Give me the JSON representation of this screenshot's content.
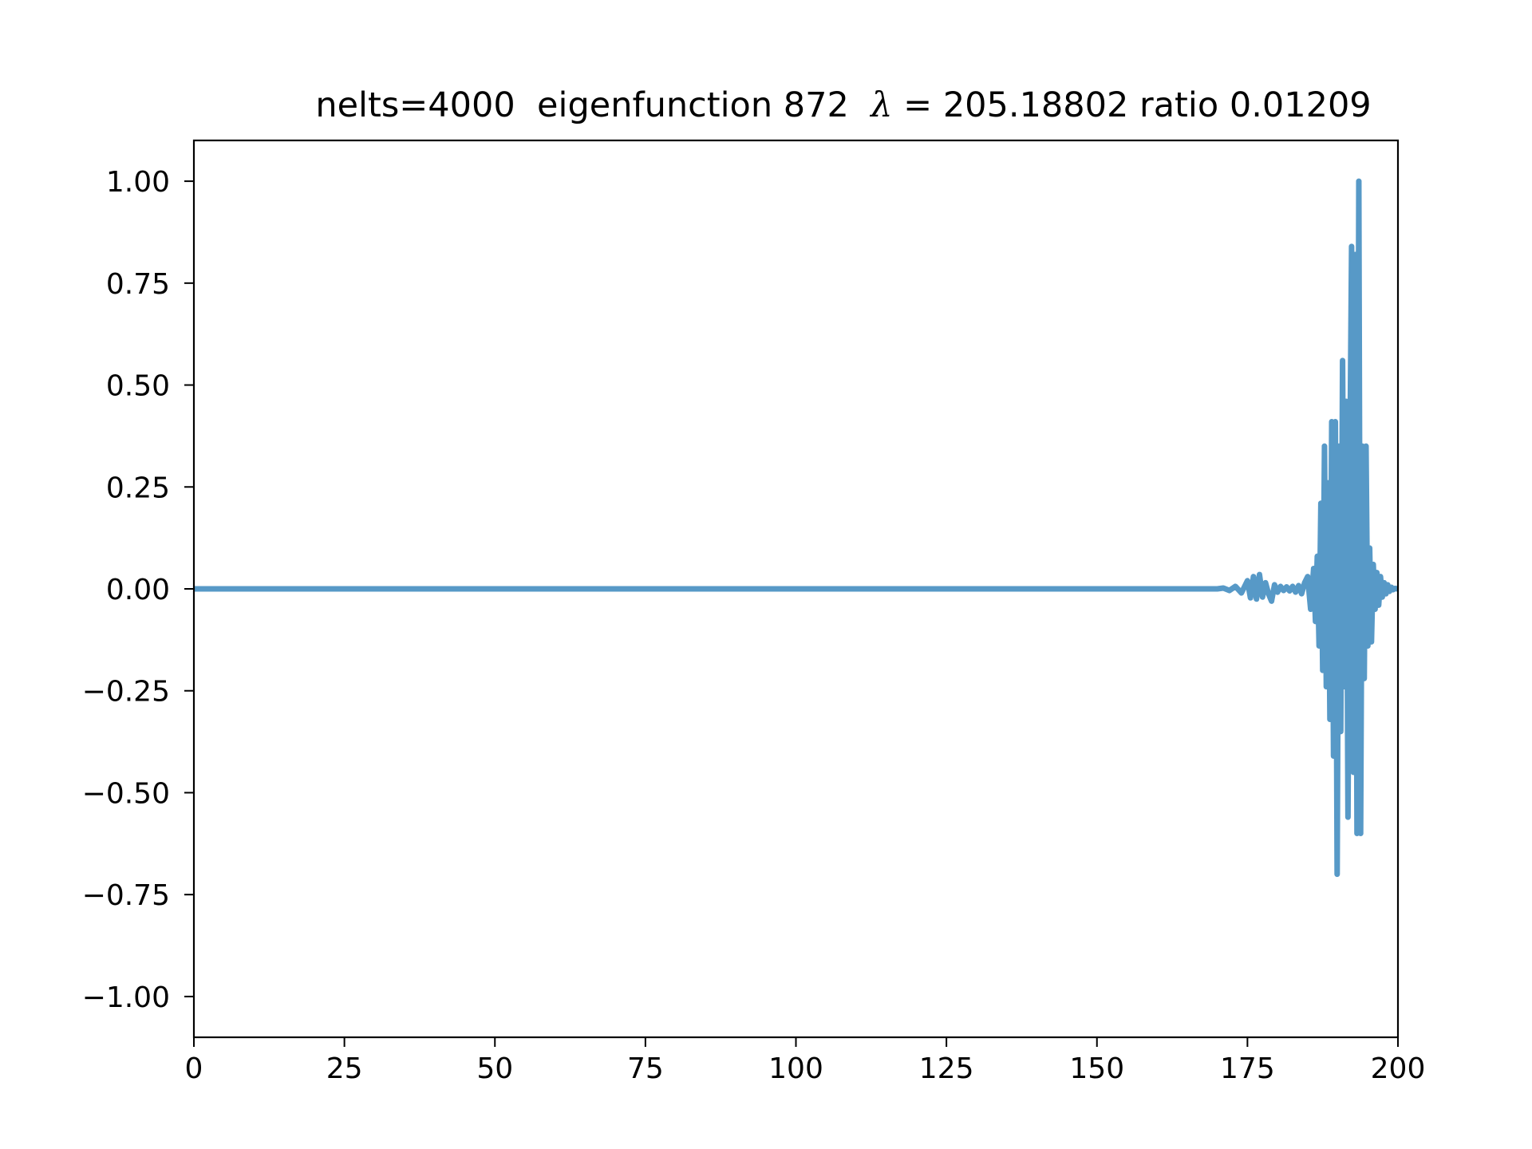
{
  "chart_data": {
    "type": "line",
    "title": {
      "prefix": "nelts=4000  eigenfunction 872  ",
      "symbol": "λ",
      "equals": " = ",
      "suffix": "205.18802 ratio 0.01209"
    },
    "xlabel": "",
    "ylabel": "",
    "xlim": [
      0,
      200
    ],
    "ylim": [
      -1.1,
      1.1
    ],
    "grid": false,
    "xticks": [
      0,
      25,
      50,
      75,
      100,
      125,
      150,
      175,
      200
    ],
    "xtick_labels": [
      "0",
      "25",
      "50",
      "75",
      "100",
      "125",
      "150",
      "175",
      "200"
    ],
    "yticks": [
      1.0,
      0.75,
      0.5,
      0.25,
      0.0,
      -0.25,
      -0.5,
      -0.75,
      -1.0
    ],
    "ytick_labels": [
      "1.00",
      "0.75",
      "0.50",
      "0.25",
      "0.00",
      "−0.25",
      "−0.50",
      "−0.75",
      "−1.00"
    ],
    "series": [
      {
        "color": "#5799c7",
        "x": [
          0,
          170,
          171,
          172,
          173,
          174,
          175,
          175.5,
          176,
          176.5,
          177,
          177.5,
          178,
          178.5,
          179,
          179.5,
          180,
          180.5,
          181,
          181.5,
          182,
          182.5,
          183,
          183.5,
          184,
          184.5,
          185,
          185.5,
          186,
          186.3,
          186.6,
          186.9,
          187.2,
          187.5,
          187.8,
          188.1,
          188.4,
          188.7,
          189,
          189.3,
          189.6,
          189.9,
          190.2,
          190.5,
          190.8,
          191.1,
          191.4,
          191.7,
          192,
          192.3,
          192.6,
          192.9,
          193.2,
          193.5,
          193.8,
          194.1,
          194.4,
          194.7,
          195,
          195.3,
          195.6,
          195.9,
          196.2,
          196.5,
          196.8,
          197.1,
          197.4,
          197.7,
          198,
          198.3,
          198.6,
          198.9,
          199.2,
          199.5,
          200
        ],
        "y": [
          0.0,
          0.0,
          0.002,
          -0.004,
          0.006,
          -0.01,
          0.02,
          -0.022,
          0.03,
          -0.025,
          0.035,
          -0.02,
          0.015,
          -0.012,
          -0.03,
          0.01,
          -0.008,
          0.006,
          -0.004,
          0.005,
          -0.005,
          0.006,
          -0.008,
          0.008,
          -0.012,
          0.015,
          0.03,
          -0.05,
          0.05,
          -0.08,
          0.08,
          -0.14,
          0.21,
          -0.2,
          0.35,
          -0.24,
          0.26,
          -0.32,
          0.41,
          -0.41,
          0.41,
          -0.7,
          0.35,
          -0.35,
          0.56,
          -0.24,
          0.46,
          -0.56,
          0.28,
          0.84,
          -0.45,
          0.82,
          -0.6,
          1.0,
          -0.6,
          0.35,
          -0.22,
          0.35,
          -0.14,
          0.1,
          -0.13,
          0.06,
          -0.05,
          0.04,
          -0.04,
          0.03,
          -0.02,
          0.015,
          -0.012,
          0.01,
          -0.006,
          0.004,
          -0.002,
          0.001,
          0.0
        ]
      }
    ]
  }
}
